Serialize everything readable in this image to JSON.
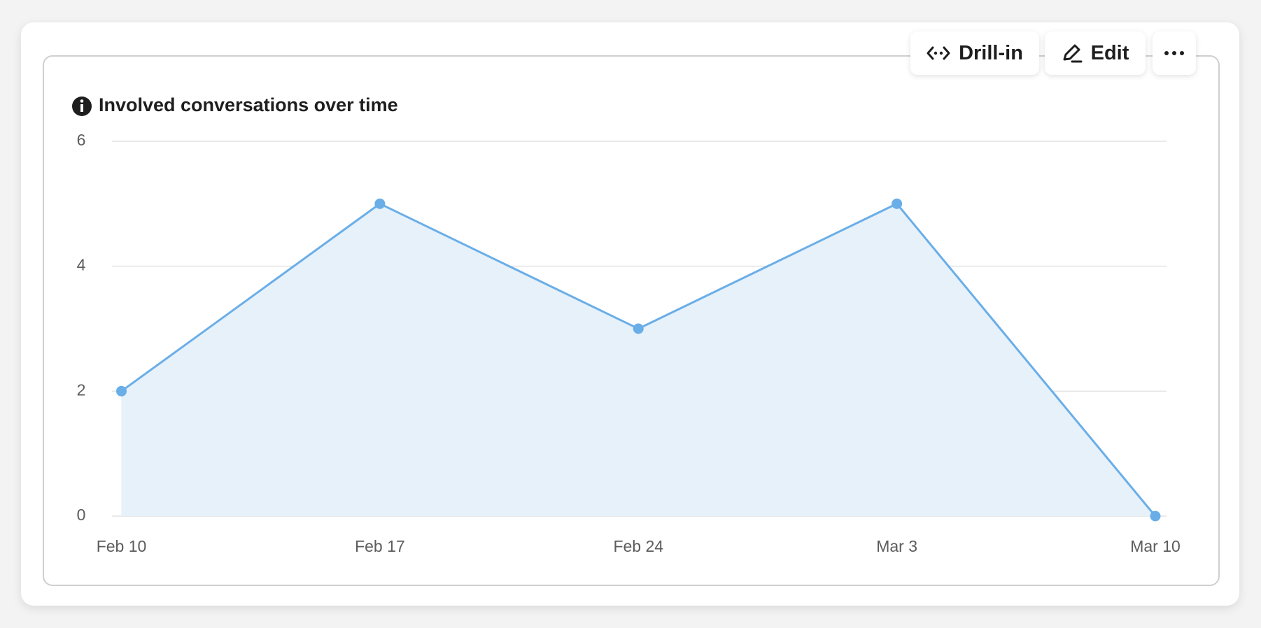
{
  "toolbar": {
    "drill_in": "Drill-in",
    "edit": "Edit"
  },
  "chart_data": {
    "type": "area",
    "title": "Involved conversations over time",
    "categories": [
      "Feb 10",
      "Feb 17",
      "Feb 24",
      "Mar 3",
      "Mar 10"
    ],
    "values": [
      2,
      5,
      3,
      5,
      0
    ],
    "color": "#6aaee8",
    "fill": "#e6f1fa",
    "ylim": [
      0,
      6
    ],
    "yticks": [
      0,
      2,
      4,
      6
    ],
    "grid": true
  }
}
